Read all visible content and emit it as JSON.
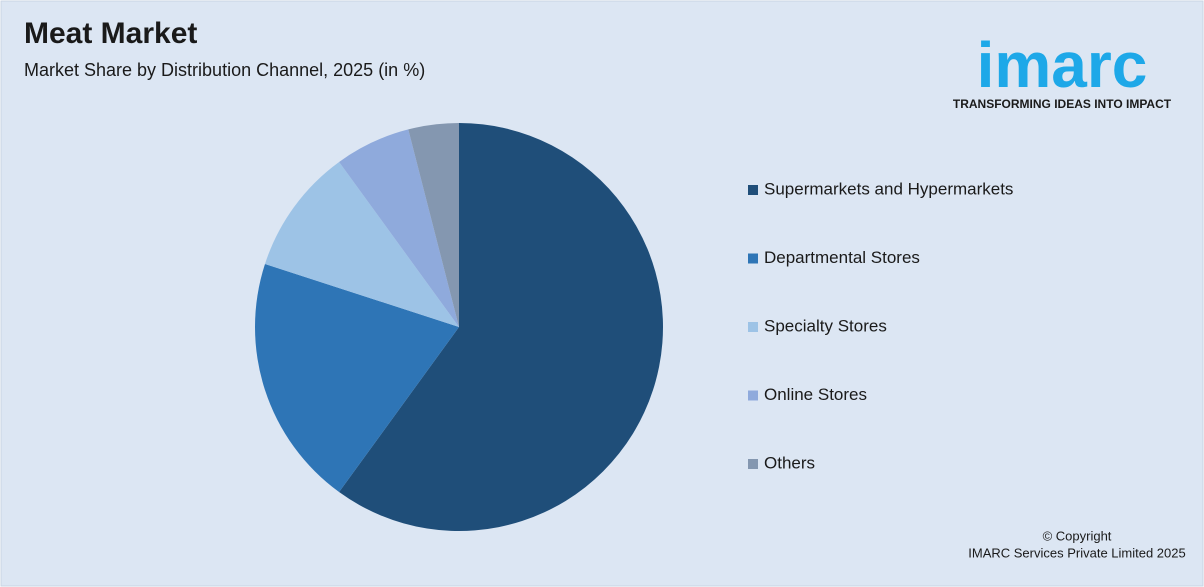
{
  "chart_data": {
    "type": "pie",
    "title": "Meat Market",
    "subtitle": "Market Share by Distribution Channel, 2025 (in %)",
    "categories": [
      "Supermarkets and Hypermarkets",
      "Departmental Stores",
      "Specialty Stores",
      "Online Stores",
      "Others"
    ],
    "values": [
      60,
      20,
      10,
      6,
      4
    ],
    "colors": [
      "#1f4e79",
      "#2e75b6",
      "#9dc3e6",
      "#8faadc",
      "#8497b0"
    ],
    "legend": "right"
  },
  "logo": {
    "name": "imarc",
    "tagline": "TRANSFORMING IDEAS INTO IMPACT"
  },
  "footer": {
    "copyright": "© Copyright",
    "company": "IMARC Services Private Limited 2025"
  }
}
